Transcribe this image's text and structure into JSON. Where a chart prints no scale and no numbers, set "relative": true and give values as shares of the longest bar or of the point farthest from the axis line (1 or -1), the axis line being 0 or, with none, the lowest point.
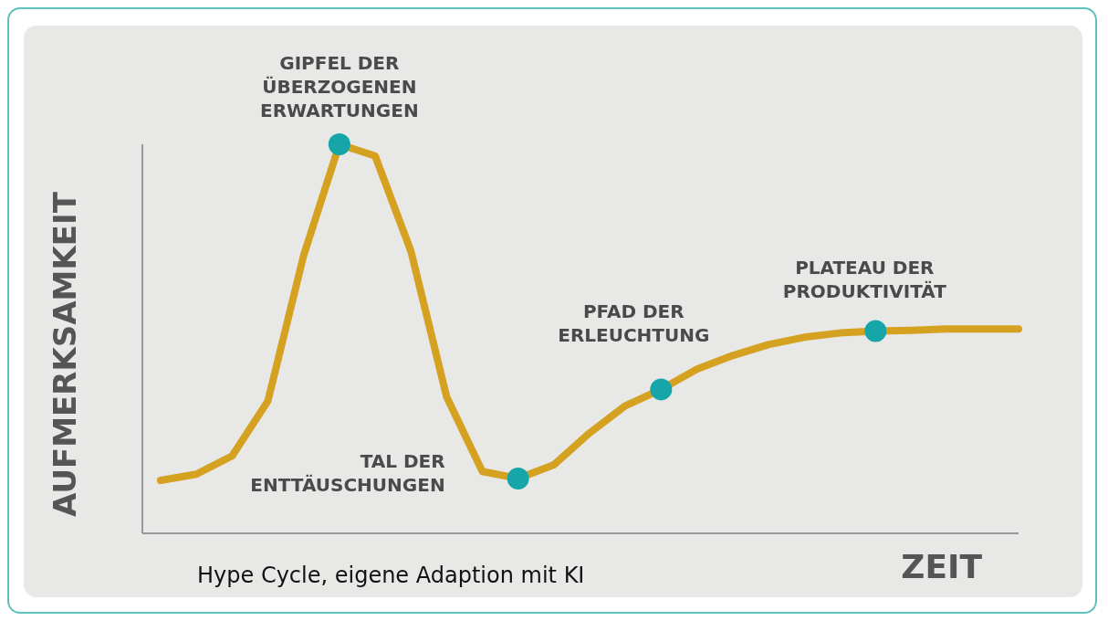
{
  "chart_data": {
    "type": "line",
    "relative": true,
    "xlabel": "ZEIT",
    "ylabel": "AUFMERKSAMKEIT",
    "categories": [
      null,
      null,
      null,
      null,
      null,
      null,
      null,
      null,
      null,
      null,
      null,
      null,
      null,
      null,
      null,
      null,
      null,
      null,
      null,
      null,
      null,
      null,
      null,
      null,
      null
    ],
    "series": [
      {
        "color": "#d5a121",
        "values": [
          0.136,
          0.152,
          0.199,
          0.34,
          0.714,
          1,
          0.97,
          0.726,
          0.351,
          0.159,
          0.141,
          0.176,
          0.258,
          0.328,
          0.37,
          0.422,
          0.457,
          0.485,
          0.504,
          0.515,
          0.52,
          0.522,
          0.525,
          0.525,
          0.525
        ]
      }
    ],
    "annotations": [
      "GIPFEL DER\nÜBERZOGENEN\nERWARTUNGEN",
      "TAL DER\nENTTÄUSCHUNGEN",
      "PFAD DER\nERLEUCHTUNG",
      "PLATEAU DER\nPRODUKTIVITÄT",
      "Hype Cycle, eigene Adaption mit KI"
    ],
    "grid": false,
    "legend": false
  }
}
